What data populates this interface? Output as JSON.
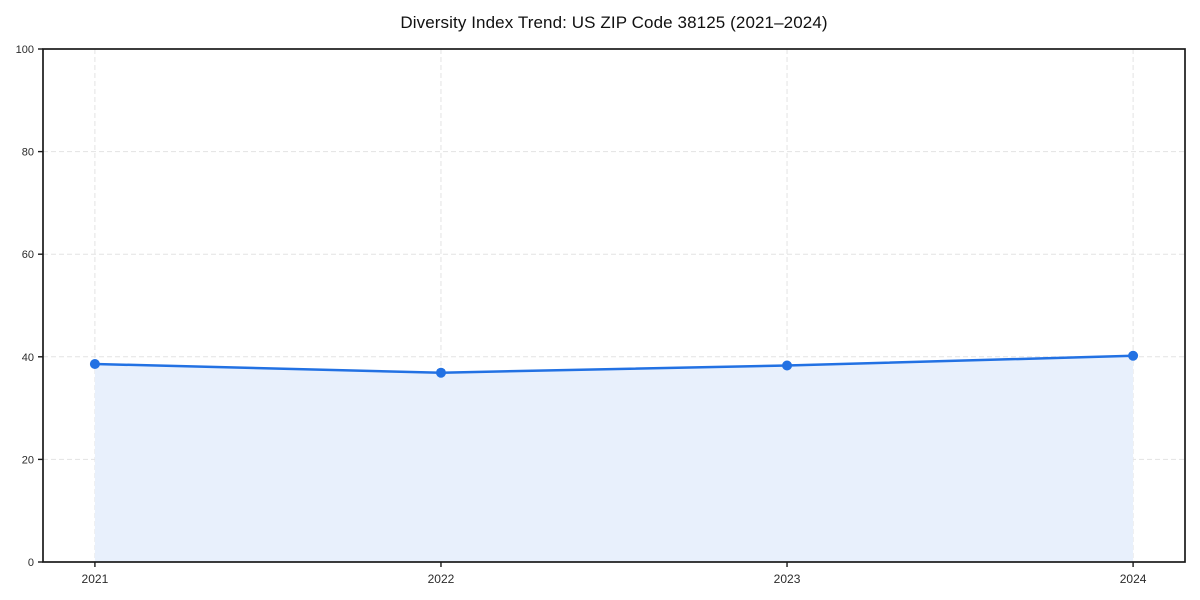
{
  "chart_data": {
    "type": "area",
    "title": "Diversity Index Trend: US ZIP Code 38125 (2021–2024)",
    "x": [
      2021,
      2022,
      2023,
      2024
    ],
    "categories": [
      "2021",
      "2022",
      "2023",
      "2024"
    ],
    "series": [
      {
        "name": "Diversity Index",
        "values": [
          38.6,
          36.9,
          38.3,
          40.2
        ]
      }
    ],
    "xlabel": "",
    "ylabel": "",
    "xlim": [
      2020.85,
      2024.15
    ],
    "ylim": [
      0,
      100
    ],
    "yticks": [
      0,
      20,
      40,
      60,
      80,
      100
    ],
    "ytick_labels": [
      "0",
      "20",
      "40",
      "60",
      "80",
      "100"
    ],
    "grid": "dashed",
    "legend_position": "none",
    "marker": "circle",
    "colors": {
      "line": "#2271e3",
      "marker": "#2271e3",
      "fill": "#e8f0fc",
      "grid": "#e3e3e3",
      "spine": "#1a1a1a",
      "tick_label": "#2b2b2b",
      "title": "#111111",
      "background": "#ffffff"
    }
  }
}
